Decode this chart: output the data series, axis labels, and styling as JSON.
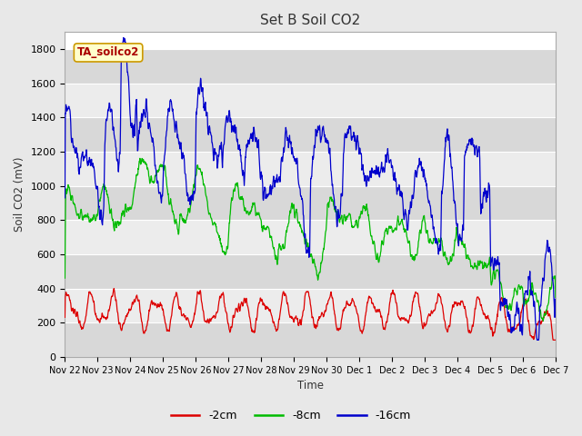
{
  "title": "Set B Soil CO2",
  "ylabel": "Soil CO2 (mV)",
  "xlabel": "Time",
  "annotation": "TA_soilco2",
  "fig_bg_color": "#e8e8e8",
  "plot_bg_color": "#ffffff",
  "ylim": [
    0,
    1900
  ],
  "yticks": [
    0,
    200,
    400,
    600,
    800,
    1000,
    1200,
    1400,
    1600,
    1800
  ],
  "x_tick_labels": [
    "Nov 22",
    "Nov 23",
    "Nov 24",
    "Nov 25",
    "Nov 26",
    "Nov 27",
    "Nov 28",
    "Nov 29",
    "Nov 30",
    "Dec 1",
    "Dec 2",
    "Dec 3",
    "Dec 4",
    "Dec 5",
    "Dec 6",
    "Dec 7"
  ],
  "series": {
    "2cm": {
      "color": "#dd0000",
      "label": "-2cm"
    },
    "8cm": {
      "color": "#00bb00",
      "label": "-8cm"
    },
    "16cm": {
      "color": "#0000cc",
      "label": "-16cm"
    }
  },
  "legend_entries": [
    {
      "label": "-2cm",
      "color": "#dd0000"
    },
    {
      "label": "-8cm",
      "color": "#00bb00"
    },
    {
      "label": "-16cm",
      "color": "#0000cc"
    }
  ],
  "band_colors": [
    "#d8d8d8",
    "#ececec"
  ],
  "band_edges": [
    0,
    200,
    400,
    600,
    800,
    1000,
    1200,
    1400,
    1600,
    1800
  ]
}
